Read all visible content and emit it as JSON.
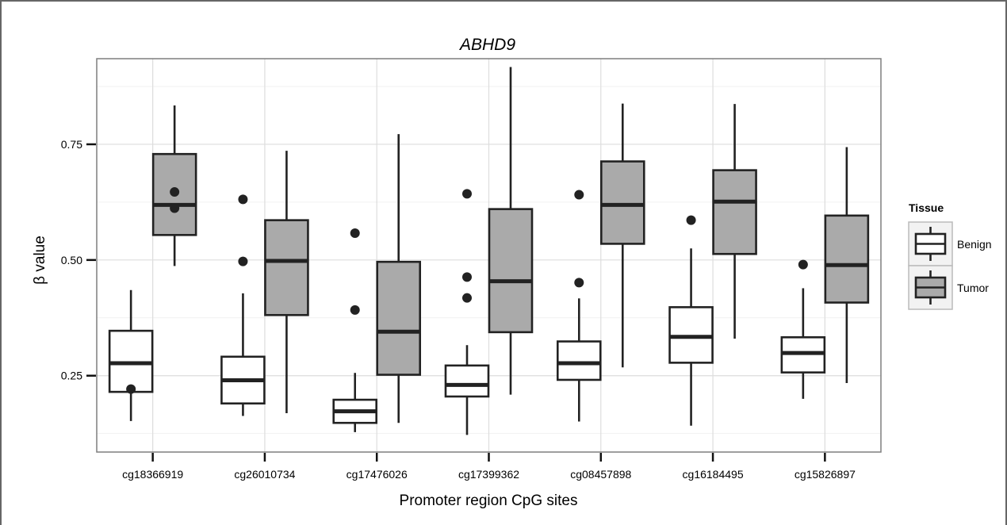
{
  "chart_data": {
    "type": "boxplot",
    "title": "ABHD9",
    "xlabel": "Promoter region CpG sites",
    "ylabel": "β value",
    "categories": [
      "cg18366919",
      "cg26010734",
      "cg17476026",
      "cg17399362",
      "cg08457898",
      "cg16184495",
      "cg15826897"
    ],
    "ylim": [
      0.085,
      0.935
    ],
    "yticks": [
      0.25,
      0.5,
      0.75
    ],
    "ytick_labels": [
      "0.25",
      "0.50",
      "0.75"
    ],
    "grid": true,
    "legend": {
      "title": "Tissue",
      "placement": "right",
      "entries": [
        "Benign",
        "Tumor"
      ]
    },
    "series": [
      {
        "name": "Benign",
        "fill": "#ffffff",
        "boxes": [
          {
            "whisker_low": 0.152,
            "q1": 0.215,
            "median": 0.277,
            "q3": 0.347,
            "whisker_high": 0.435,
            "outliers": [
              0.221
            ]
          },
          {
            "whisker_low": 0.163,
            "q1": 0.19,
            "median": 0.24,
            "q3": 0.291,
            "whisker_high": 0.428,
            "outliers": [
              0.497,
              0.631
            ]
          },
          {
            "whisker_low": 0.128,
            "q1": 0.148,
            "median": 0.173,
            "q3": 0.198,
            "whisker_high": 0.256,
            "outliers": [
              0.392,
              0.558
            ]
          },
          {
            "whisker_low": 0.122,
            "q1": 0.205,
            "median": 0.23,
            "q3": 0.272,
            "whisker_high": 0.316,
            "outliers": [
              0.418,
              0.463,
              0.643
            ]
          },
          {
            "whisker_low": 0.151,
            "q1": 0.241,
            "median": 0.277,
            "q3": 0.324,
            "whisker_high": 0.417,
            "outliers": [
              0.451,
              0.641
            ]
          },
          {
            "whisker_low": 0.142,
            "q1": 0.278,
            "median": 0.334,
            "q3": 0.398,
            "whisker_high": 0.525,
            "outliers": [
              0.586
            ]
          },
          {
            "whisker_low": 0.2,
            "q1": 0.257,
            "median": 0.299,
            "q3": 0.333,
            "whisker_high": 0.439,
            "outliers": [
              0.49
            ]
          }
        ]
      },
      {
        "name": "Tumor",
        "fill": "#aaaaaa",
        "boxes": [
          {
            "whisker_low": 0.487,
            "q1": 0.554,
            "median": 0.619,
            "q3": 0.729,
            "whisker_high": 0.834,
            "outliers": [
              0.612,
              0.647
            ]
          },
          {
            "whisker_low": 0.169,
            "q1": 0.381,
            "median": 0.498,
            "q3": 0.586,
            "whisker_high": 0.736,
            "outliers": []
          },
          {
            "whisker_low": 0.148,
            "q1": 0.252,
            "median": 0.345,
            "q3": 0.496,
            "whisker_high": 0.772,
            "outliers": []
          },
          {
            "whisker_low": 0.209,
            "q1": 0.344,
            "median": 0.454,
            "q3": 0.61,
            "whisker_high": 0.917,
            "outliers": []
          },
          {
            "whisker_low": 0.268,
            "q1": 0.535,
            "median": 0.619,
            "q3": 0.713,
            "whisker_high": 0.838,
            "outliers": []
          },
          {
            "whisker_low": 0.33,
            "q1": 0.513,
            "median": 0.626,
            "q3": 0.694,
            "whisker_high": 0.837,
            "outliers": []
          },
          {
            "whisker_low": 0.234,
            "q1": 0.408,
            "median": 0.489,
            "q3": 0.596,
            "whisker_high": 0.744,
            "outliers": []
          }
        ]
      }
    ]
  }
}
